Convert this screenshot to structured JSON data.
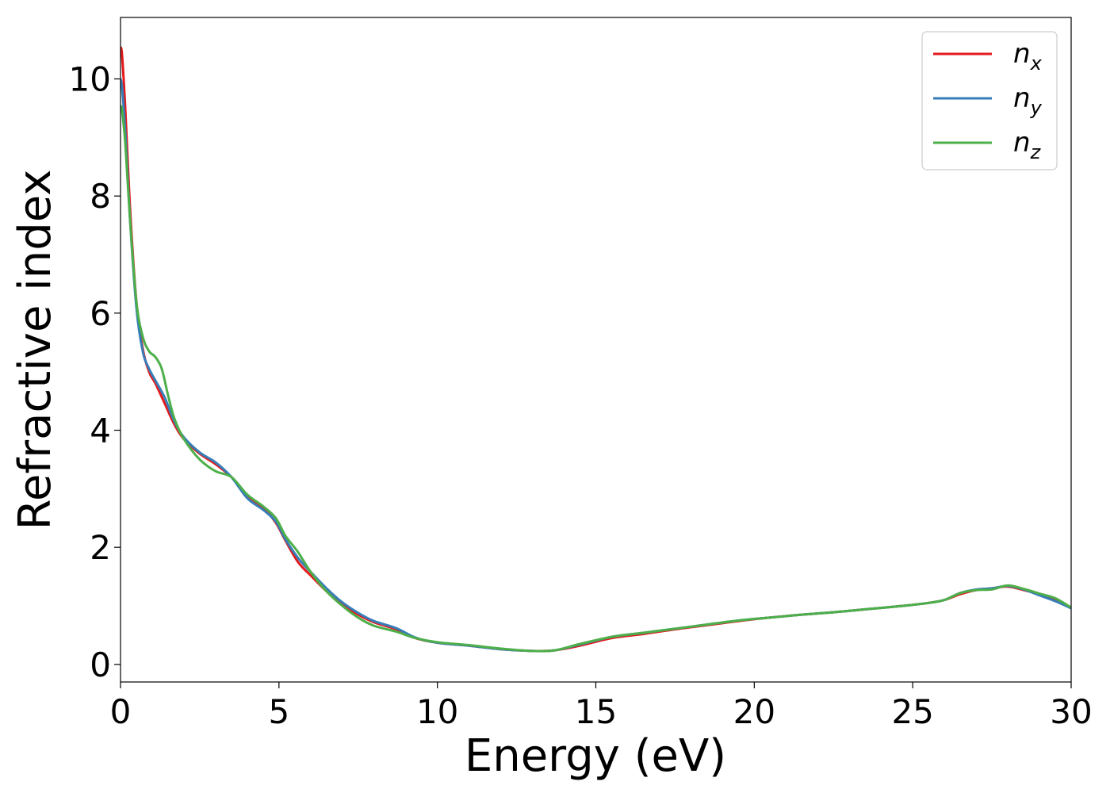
{
  "chart_data": {
    "type": "line",
    "xlabel": "Energy (eV)",
    "ylabel": "Refractive index",
    "xlim": [
      0,
      30
    ],
    "ylim": [
      -0.3,
      11.05
    ],
    "xticks": [
      "0",
      "5",
      "10",
      "15",
      "20",
      "25",
      "30"
    ],
    "yticks": [
      "0",
      "2",
      "4",
      "6",
      "8",
      "10"
    ],
    "grid": false,
    "legend_position": "top-right",
    "series": [
      {
        "name": "n_x",
        "label_base": "n",
        "label_sub": "x",
        "color": "#e41a1c",
        "x": [
          0,
          0.05,
          0.15,
          0.3,
          0.5,
          0.7,
          0.9,
          1.1,
          1.4,
          1.7,
          2.0,
          2.5,
          3.0,
          3.5,
          4.0,
          4.5,
          4.9,
          5.2,
          5.6,
          6.0,
          6.5,
          7.0,
          7.5,
          8.0,
          8.7,
          9.3,
          10.0,
          11.0,
          12.0,
          13.0,
          13.7,
          14.5,
          15.5,
          16.5,
          17.5,
          18.5,
          19.5,
          20.5,
          21.5,
          22.5,
          23.5,
          24.5,
          25.5,
          26.0,
          26.5,
          27.0,
          27.5,
          28.0,
          28.5,
          29.0,
          29.5,
          30.0
        ],
        "y": [
          10.55,
          10.4,
          9.5,
          7.8,
          6.2,
          5.4,
          5.0,
          4.8,
          4.45,
          4.1,
          3.85,
          3.6,
          3.42,
          3.2,
          2.88,
          2.68,
          2.42,
          2.12,
          1.75,
          1.52,
          1.25,
          1.02,
          0.85,
          0.72,
          0.6,
          0.45,
          0.37,
          0.32,
          0.26,
          0.23,
          0.24,
          0.32,
          0.45,
          0.52,
          0.6,
          0.67,
          0.74,
          0.8,
          0.85,
          0.89,
          0.94,
          0.99,
          1.05,
          1.1,
          1.2,
          1.27,
          1.3,
          1.33,
          1.27,
          1.2,
          1.1,
          0.97
        ]
      },
      {
        "name": "n_y",
        "label_base": "n",
        "label_sub": "y",
        "color": "#377eb8",
        "x": [
          0,
          0.05,
          0.15,
          0.3,
          0.5,
          0.7,
          0.9,
          1.1,
          1.4,
          1.7,
          2.0,
          2.5,
          3.0,
          3.5,
          4.0,
          4.5,
          4.9,
          5.2,
          5.6,
          6.0,
          6.5,
          7.0,
          7.5,
          8.0,
          8.7,
          9.3,
          10.0,
          11.0,
          12.0,
          13.0,
          13.7,
          14.5,
          15.5,
          16.5,
          17.5,
          18.5,
          19.5,
          20.5,
          21.5,
          22.5,
          23.5,
          24.5,
          25.5,
          26.0,
          26.5,
          27.0,
          27.5,
          28.0,
          28.5,
          29.0,
          29.5,
          30.0
        ],
        "y": [
          10.0,
          9.85,
          9.1,
          7.6,
          6.1,
          5.35,
          5.05,
          4.85,
          4.55,
          4.15,
          3.88,
          3.62,
          3.45,
          3.2,
          2.84,
          2.64,
          2.44,
          2.14,
          1.82,
          1.58,
          1.3,
          1.06,
          0.88,
          0.74,
          0.62,
          0.46,
          0.37,
          0.32,
          0.26,
          0.23,
          0.24,
          0.34,
          0.47,
          0.54,
          0.61,
          0.68,
          0.75,
          0.8,
          0.85,
          0.89,
          0.94,
          0.99,
          1.05,
          1.1,
          1.22,
          1.28,
          1.3,
          1.34,
          1.28,
          1.18,
          1.08,
          0.96
        ]
      },
      {
        "name": "n_z",
        "label_base": "n",
        "label_sub": "z",
        "color": "#4daf4a",
        "x": [
          0,
          0.05,
          0.15,
          0.3,
          0.5,
          0.7,
          0.9,
          1.1,
          1.3,
          1.5,
          1.7,
          2.0,
          2.5,
          3.0,
          3.5,
          4.0,
          4.5,
          4.9,
          5.2,
          5.6,
          6.0,
          6.5,
          7.0,
          7.5,
          8.0,
          8.7,
          9.3,
          10.0,
          11.0,
          12.0,
          13.0,
          13.7,
          14.5,
          15.5,
          16.5,
          17.5,
          18.5,
          19.5,
          20.5,
          21.5,
          22.5,
          23.5,
          24.5,
          25.5,
          26.0,
          26.5,
          27.0,
          27.5,
          28.0,
          28.5,
          29.0,
          29.5,
          30.0
        ],
        "y": [
          9.55,
          9.45,
          8.9,
          7.6,
          6.2,
          5.6,
          5.35,
          5.25,
          5.05,
          4.6,
          4.2,
          3.85,
          3.5,
          3.3,
          3.2,
          2.9,
          2.7,
          2.5,
          2.2,
          1.92,
          1.58,
          1.25,
          1.0,
          0.8,
          0.66,
          0.56,
          0.45,
          0.38,
          0.33,
          0.27,
          0.23,
          0.24,
          0.35,
          0.47,
          0.54,
          0.61,
          0.68,
          0.75,
          0.8,
          0.85,
          0.89,
          0.94,
          0.99,
          1.05,
          1.1,
          1.22,
          1.27,
          1.28,
          1.35,
          1.29,
          1.21,
          1.13,
          0.97
        ]
      }
    ]
  }
}
